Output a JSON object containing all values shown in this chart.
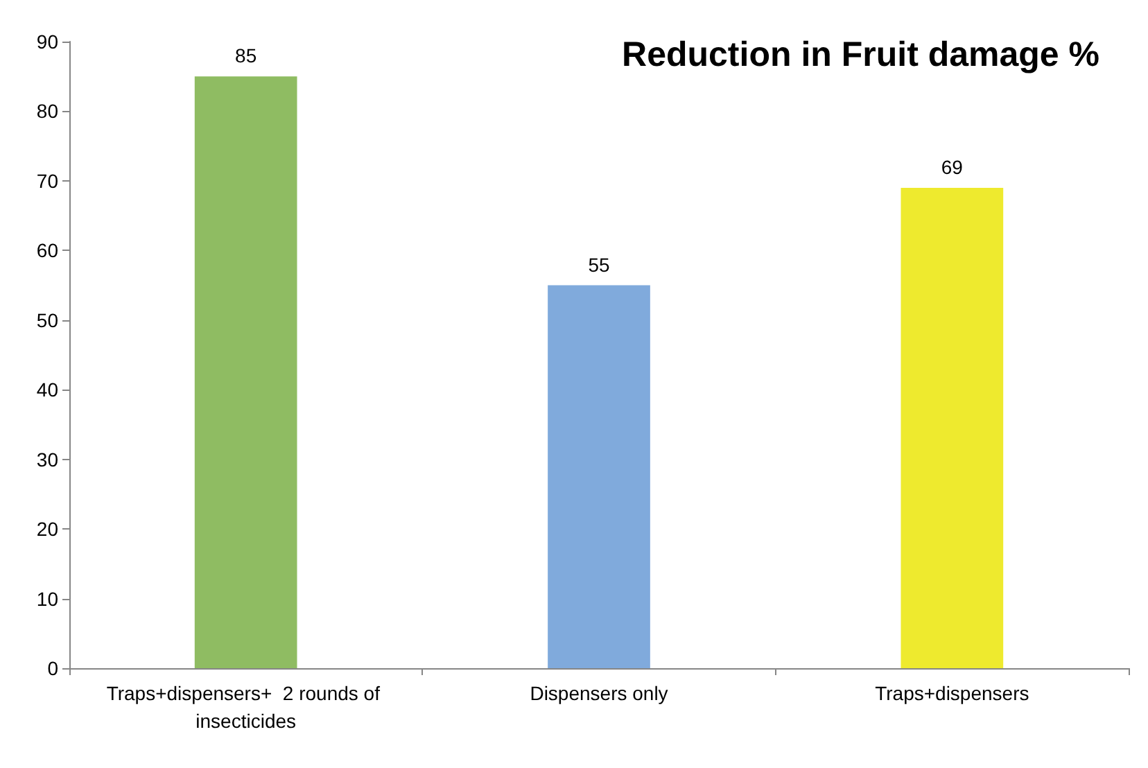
{
  "chart_data": {
    "type": "bar",
    "title": "Reduction in Fruit damage %",
    "categories": [
      "Traps+dispensers+  2 rounds of insecticides",
      "Dispensers only",
      "Traps+dispensers"
    ],
    "values": [
      85,
      55,
      69
    ],
    "colors": [
      "#8fbc62",
      "#80aadc",
      "#eeea2e"
    ],
    "ylim": [
      0,
      90
    ],
    "yticks": [
      0,
      10,
      20,
      30,
      40,
      50,
      60,
      70,
      80,
      90
    ],
    "grid": false,
    "data_labels": true
  }
}
